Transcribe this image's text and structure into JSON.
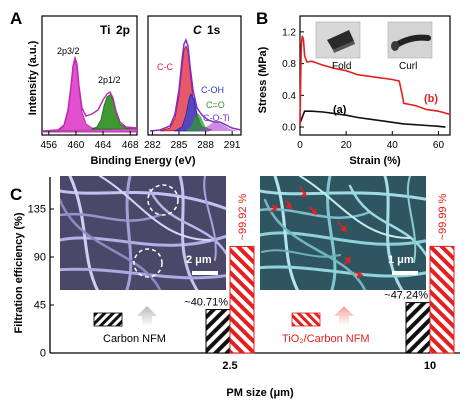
{
  "panel_labels": {
    "a": "A",
    "b": "B",
    "c": "C"
  },
  "panel_a": {
    "ylabel": "Intensity (a.u.)",
    "xlabel": "Binding Energy (eV)",
    "ti": {
      "title_element": "Ti",
      "title_orbital": "2p",
      "peak1": "2p3/2",
      "peak2": "2p1/2",
      "ticks": [
        "456",
        "460",
        "464",
        "468"
      ]
    },
    "c": {
      "title_element": "C",
      "title_orbital": "1s",
      "peaks": [
        "C-C",
        "C-OH",
        "C=O",
        "C-O-Ti"
      ],
      "ticks": [
        "282",
        "285",
        "288",
        "291"
      ]
    }
  },
  "panel_b": {
    "ylabel": "Stress (MPa)",
    "xlabel": "Strain (%)",
    "label_a": "(a)",
    "label_b": "(b)",
    "inset_fold": "Fold",
    "inset_curl": "Curl"
  },
  "panel_c": {
    "ylabel": "Filtration efficiency (%)",
    "xlabel": "PM size (μm)",
    "legend_carbon": "Carbon NFM",
    "legend_tio2": "TiO₂/Carbon NFM",
    "scale_left": "2 μm",
    "scale_right": "1 μm"
  },
  "colors": {
    "ti_fill": "#e24fcf",
    "ti_green": "#3d9a33",
    "cc_purple": "#7b2fd0",
    "c_red": "#e0203a",
    "c_blue": "#2a3fd8",
    "c_green": "#2f9a2f",
    "stress_red": "#e42020",
    "sem_left": "#9b93c8",
    "sem_right": "#6fb7c4"
  },
  "chart_data": [
    {
      "type": "line",
      "id": "A-Ti2p",
      "xlabel": "Binding Energy (eV)",
      "ylabel": "Intensity (a.u.)",
      "xlim": [
        455,
        469
      ],
      "x_ticks": [
        456,
        460,
        464,
        468
      ],
      "series": [
        {
          "name": "2p3/2",
          "center": 458.8,
          "relative_height": 0.85
        },
        {
          "name": "2p1/2",
          "center": 464.5,
          "relative_height": 0.4
        }
      ]
    },
    {
      "type": "line",
      "id": "A-C1s",
      "xlabel": "Binding Energy (eV)",
      "ylabel": "Intensity (a.u.)",
      "xlim": [
        281.5,
        292
      ],
      "x_ticks": [
        282,
        285,
        288,
        291
      ],
      "series": [
        {
          "name": "C-C",
          "center": 284.8,
          "relative_height": 0.9
        },
        {
          "name": "C-OH",
          "center": 285.7,
          "relative_height": 0.45
        },
        {
          "name": "C=O",
          "center": 286.6,
          "relative_height": 0.2
        },
        {
          "name": "C-O-Ti",
          "center": 288.8,
          "relative_height": 0.1
        }
      ]
    },
    {
      "type": "line",
      "id": "B-stress-strain",
      "xlabel": "Strain (%)",
      "ylabel": "Stress (MPa)",
      "xlim": [
        0,
        65
      ],
      "ylim": [
        -0.1,
        1.4
      ],
      "x_ticks": [
        0,
        20,
        40,
        60
      ],
      "y_ticks": [
        0.0,
        0.4,
        0.8,
        1.2
      ],
      "series": [
        {
          "name": "(a)",
          "x": [
            0,
            2,
            5,
            10,
            15,
            20,
            25,
            30,
            35,
            40,
            45,
            50,
            55,
            60,
            63
          ],
          "y": [
            0.05,
            0.2,
            0.2,
            0.19,
            0.17,
            0.15,
            0.12,
            0.1,
            0.08,
            0.06,
            0.04,
            0.03,
            0.02,
            0.01,
            0.0
          ]
        },
        {
          "name": "(b)",
          "x": [
            0,
            0.5,
            1,
            1.5,
            2,
            3,
            5,
            8,
            10,
            15,
            20,
            25,
            30,
            35,
            40,
            43,
            44,
            45,
            50,
            55,
            60,
            65
          ],
          "y": [
            0.02,
            1.0,
            1.15,
            1.1,
            0.9,
            0.82,
            0.83,
            0.8,
            0.78,
            0.74,
            0.71,
            0.66,
            0.64,
            0.62,
            0.6,
            0.58,
            0.45,
            0.3,
            0.27,
            0.22,
            0.2,
            0.16
          ]
        }
      ]
    },
    {
      "type": "bar",
      "id": "C-filtration",
      "xlabel": "PM size (μm)",
      "ylabel": "Filtration efficiency (%)",
      "ylim": [
        0,
        165
      ],
      "y_ticks": [
        0,
        45,
        90,
        135
      ],
      "categories": [
        "2.5",
        "10"
      ],
      "series": [
        {
          "name": "Carbon NFM",
          "values": [
            40.71,
            47.24
          ],
          "labels": [
            "~40.71%",
            "~47.24%"
          ]
        },
        {
          "name": "TiO₂/Carbon NFM",
          "values": [
            99.92,
            99.99
          ],
          "labels": [
            "~99.92 %",
            "~99.99 %"
          ]
        }
      ]
    }
  ]
}
